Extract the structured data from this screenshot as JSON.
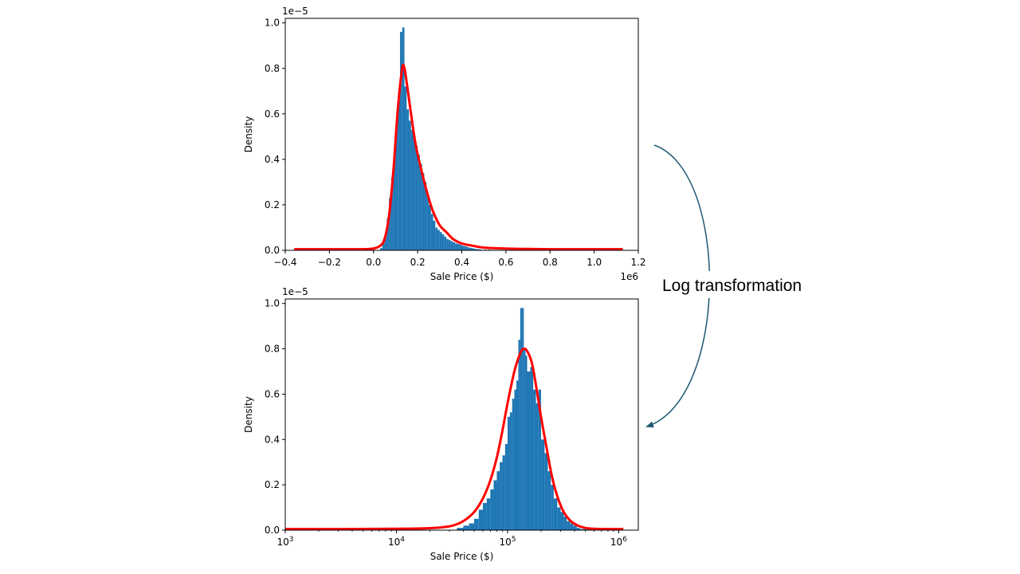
{
  "chart_data": [
    {
      "type": "bar",
      "xlabel": "Sale Price ($)",
      "ylabel": "Density",
      "x_offset_label": "1e6",
      "y_offset_label": "1e−5",
      "xlim": [
        -0.4,
        1.2
      ],
      "ylim": [
        0,
        1.02
      ],
      "xticks": [
        {
          "value": -0.4,
          "label": "−0.4"
        },
        {
          "value": -0.2,
          "label": "−0.2"
        },
        {
          "value": 0.0,
          "label": "0.0"
        },
        {
          "value": 0.2,
          "label": "0.2"
        },
        {
          "value": 0.4,
          "label": "0.4"
        },
        {
          "value": 0.6,
          "label": "0.6"
        },
        {
          "value": 0.8,
          "label": "0.8"
        },
        {
          "value": 1.0,
          "label": "1.0"
        },
        {
          "value": 1.2,
          "label": "1.2"
        }
      ],
      "yticks": [
        {
          "value": 0.0,
          "label": "0.0"
        },
        {
          "value": 0.2,
          "label": "0.2"
        },
        {
          "value": 0.4,
          "label": "0.4"
        },
        {
          "value": 0.6,
          "label": "0.6"
        },
        {
          "value": 0.8,
          "label": "0.8"
        },
        {
          "value": 1.0,
          "label": "1.0"
        }
      ],
      "histogram": {
        "color": "#1f77b4",
        "bin_width": 0.01,
        "bin_start": [
          0.03,
          0.04,
          0.05,
          0.06,
          0.07,
          0.08,
          0.09,
          0.1,
          0.11,
          0.12,
          0.13,
          0.14,
          0.15,
          0.16,
          0.17,
          0.18,
          0.19,
          0.2,
          0.21,
          0.22,
          0.23,
          0.24,
          0.25,
          0.26,
          0.27,
          0.28,
          0.29,
          0.3,
          0.31,
          0.32,
          0.33,
          0.34,
          0.35,
          0.36,
          0.37,
          0.38,
          0.39,
          0.4,
          0.41,
          0.42,
          0.43,
          0.44,
          0.45,
          0.46,
          0.47,
          0.48,
          0.5,
          0.52,
          0.55,
          0.58,
          0.61,
          0.65,
          0.7,
          0.75
        ],
        "density": [
          0.01,
          0.03,
          0.06,
          0.14,
          0.23,
          0.32,
          0.4,
          0.55,
          0.66,
          0.96,
          0.98,
          0.72,
          0.62,
          0.57,
          0.53,
          0.5,
          0.46,
          0.42,
          0.38,
          0.34,
          0.3,
          0.25,
          0.2,
          0.16,
          0.13,
          0.1,
          0.09,
          0.08,
          0.07,
          0.06,
          0.05,
          0.045,
          0.04,
          0.035,
          0.03,
          0.028,
          0.025,
          0.02,
          0.018,
          0.015,
          0.012,
          0.01,
          0.008,
          0.006,
          0.005,
          0.004,
          0.003,
          0.003,
          0.002,
          0.002,
          0.002,
          0.001,
          0.001,
          0.001
        ]
      },
      "kde": {
        "color": "#ff0000",
        "x": [
          -0.36,
          -0.2,
          -0.05,
          0.0,
          0.03,
          0.05,
          0.07,
          0.09,
          0.11,
          0.13,
          0.14,
          0.15,
          0.17,
          0.19,
          0.21,
          0.23,
          0.25,
          0.27,
          0.3,
          0.33,
          0.36,
          0.4,
          0.45,
          0.5,
          0.6,
          0.7,
          0.8,
          0.9,
          1.0,
          1.13
        ],
        "y": [
          0.005,
          0.005,
          0.005,
          0.008,
          0.02,
          0.05,
          0.15,
          0.35,
          0.62,
          0.8,
          0.8,
          0.74,
          0.6,
          0.47,
          0.38,
          0.3,
          0.23,
          0.17,
          0.11,
          0.08,
          0.05,
          0.03,
          0.02,
          0.012,
          0.008,
          0.006,
          0.005,
          0.005,
          0.005,
          0.005
        ]
      }
    },
    {
      "type": "bar",
      "xlabel": "Sale Price ($)",
      "ylabel": "Density",
      "y_offset_label": "1e−5",
      "x_scale": "log",
      "xlim": [
        1000,
        1500000
      ],
      "ylim": [
        0,
        1.02
      ],
      "xticks": [
        {
          "value": 1000,
          "base": "10",
          "exp": "3"
        },
        {
          "value": 10000,
          "base": "10",
          "exp": "4"
        },
        {
          "value": 100000,
          "base": "10",
          "exp": "5"
        },
        {
          "value": 1000000,
          "base": "10",
          "exp": "6"
        }
      ],
      "yticks": [
        {
          "value": 0.0,
          "label": "0.0"
        },
        {
          "value": 0.2,
          "label": "0.2"
        },
        {
          "value": 0.4,
          "label": "0.4"
        },
        {
          "value": 0.6,
          "label": "0.6"
        },
        {
          "value": 0.8,
          "label": "0.8"
        },
        {
          "value": 1.0,
          "label": "1.0"
        }
      ],
      "histogram": {
        "color": "#1f77b4",
        "bin_start": [
          35000,
          40000,
          45000,
          50000,
          55000,
          60000,
          65000,
          70000,
          75000,
          80000,
          85000,
          90000,
          95000,
          100000,
          105000,
          110000,
          115000,
          120000,
          125000,
          130000,
          135000,
          140000,
          145000,
          150000,
          160000,
          170000,
          180000,
          190000,
          200000,
          215000,
          230000,
          245000,
          260000,
          280000,
          300000,
          320000,
          340000,
          365000,
          390000,
          420000,
          450000,
          500000,
          560000,
          620000,
          700000,
          800000
        ],
        "bin_end": [
          40000,
          45000,
          50000,
          55000,
          60000,
          65000,
          70000,
          75000,
          80000,
          85000,
          90000,
          95000,
          100000,
          105000,
          110000,
          115000,
          120000,
          125000,
          130000,
          135000,
          140000,
          145000,
          150000,
          160000,
          170000,
          180000,
          190000,
          200000,
          215000,
          230000,
          245000,
          260000,
          280000,
          300000,
          320000,
          340000,
          365000,
          390000,
          420000,
          450000,
          500000,
          560000,
          620000,
          700000,
          800000,
          1000000
        ],
        "density": [
          0.01,
          0.02,
          0.03,
          0.05,
          0.09,
          0.12,
          0.14,
          0.18,
          0.22,
          0.26,
          0.3,
          0.33,
          0.38,
          0.5,
          0.52,
          0.58,
          0.62,
          0.66,
          0.84,
          0.98,
          0.98,
          0.8,
          0.77,
          0.7,
          0.72,
          0.62,
          0.56,
          0.62,
          0.4,
          0.34,
          0.26,
          0.2,
          0.14,
          0.1,
          0.08,
          0.06,
          0.04,
          0.03,
          0.02,
          0.01,
          0.005,
          0.004,
          0.003,
          0.002,
          0.002,
          0.001
        ]
      },
      "kde": {
        "color": "#ff0000",
        "x": [
          1000,
          3000,
          10000,
          18000,
          25000,
          32000,
          40000,
          50000,
          60000,
          70000,
          80000,
          90000,
          100000,
          115000,
          130000,
          140000,
          150000,
          165000,
          180000,
          200000,
          225000,
          250000,
          280000,
          320000,
          370000,
          430000,
          500000,
          600000,
          800000,
          1100000
        ],
        "y": [
          0.005,
          0.005,
          0.006,
          0.008,
          0.012,
          0.02,
          0.04,
          0.08,
          0.14,
          0.22,
          0.32,
          0.44,
          0.56,
          0.7,
          0.78,
          0.8,
          0.79,
          0.74,
          0.64,
          0.5,
          0.36,
          0.24,
          0.15,
          0.08,
          0.04,
          0.02,
          0.01,
          0.006,
          0.005,
          0.005
        ]
      }
    }
  ],
  "annotation": {
    "label": "Log transformation",
    "arrow_color": "#1f5a73"
  }
}
